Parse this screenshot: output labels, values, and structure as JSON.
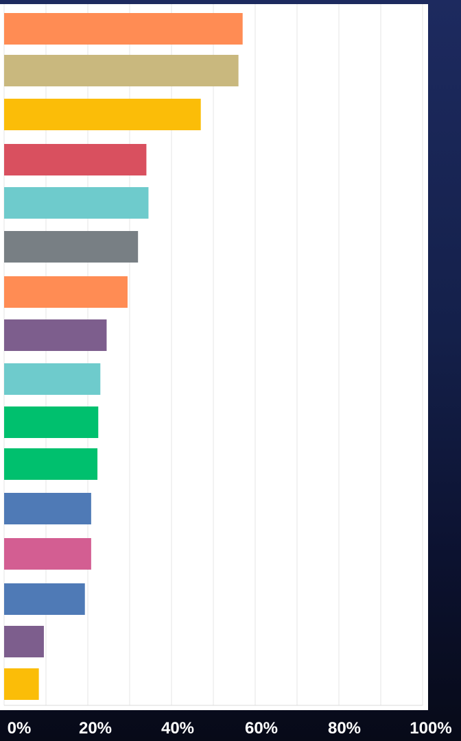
{
  "chart_data": {
    "type": "bar",
    "orientation": "horizontal",
    "title": "",
    "xlabel": "",
    "ylabel": "",
    "xlim": [
      0,
      100
    ],
    "x_ticks": [
      "0%",
      "20%",
      "40%",
      "60%",
      "80%",
      "100%"
    ],
    "grid": true,
    "legend": "none",
    "bars": [
      {
        "value": 57,
        "color": "#ff8c54"
      },
      {
        "value": 56,
        "color": "#c9b87e"
      },
      {
        "value": 47,
        "color": "#fbbd08"
      },
      {
        "value": 34,
        "color": "#d9505f"
      },
      {
        "value": 34.5,
        "color": "#6ecbcc"
      },
      {
        "value": 32,
        "color": "#787f84"
      },
      {
        "value": 29.5,
        "color": "#ff8c54"
      },
      {
        "value": 24.5,
        "color": "#7d5e8d"
      },
      {
        "value": 23,
        "color": "#6ecbcc"
      },
      {
        "value": 22.5,
        "color": "#00c06e"
      },
      {
        "value": 22.3,
        "color": "#00c06e"
      },
      {
        "value": 20.8,
        "color": "#4f7ab6"
      },
      {
        "value": 20.8,
        "color": "#d35e92"
      },
      {
        "value": 19.3,
        "color": "#4f7ab6"
      },
      {
        "value": 9.5,
        "color": "#7d5e8d"
      },
      {
        "value": 8.3,
        "color": "#fbbd08"
      }
    ]
  }
}
